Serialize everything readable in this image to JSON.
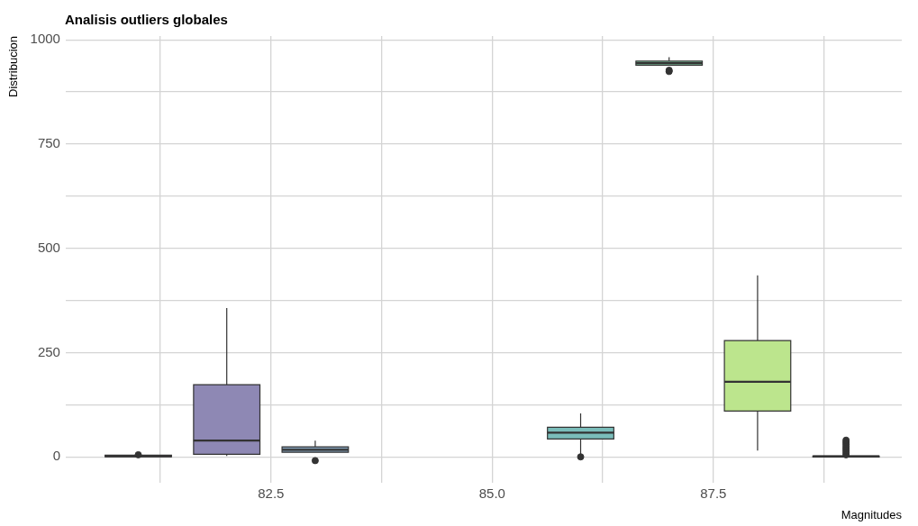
{
  "chart_data": {
    "type": "box",
    "title": "Analisis outliers globales",
    "xlabel": "Magnitudes",
    "ylabel": "Distribucion",
    "x": [
      81,
      82,
      83,
      86,
      87,
      88,
      89
    ],
    "colors": [
      "#8f6b99",
      "#8e88b4",
      "#839fb9",
      "#7abdba",
      "#86d1aa",
      "#bce58d",
      "#fdf08f"
    ],
    "boxes": [
      {
        "low": 0,
        "q1": 0,
        "median": 2,
        "q3": 4,
        "high": 6,
        "outliers": [
          5
        ]
      },
      {
        "low": 2,
        "q1": 6,
        "median": 39,
        "q3": 173,
        "high": 357
      },
      {
        "low": 11,
        "q1": 11,
        "median": 17,
        "q3": 24,
        "high": 39,
        "outliers": [
          -9
        ]
      },
      {
        "low": 5,
        "q1": 43,
        "median": 58,
        "q3": 71,
        "high": 104,
        "outliers": [
          0
        ]
      },
      {
        "low": 939,
        "q1": 939,
        "median": 944,
        "q3": 949,
        "high": 958,
        "outliers": [
          924,
          927
        ]
      },
      {
        "low": 15,
        "q1": 110,
        "median": 180,
        "q3": 279,
        "high": 435
      },
      {
        "low": 0,
        "q1": 0,
        "median": 1,
        "q3": 2,
        "high": 4,
        "outliers": [
          5,
          10,
          15,
          20,
          25,
          30,
          35,
          40
        ]
      }
    ],
    "xlim": [
      80.18,
      89.63
    ],
    "xticks": [
      {
        "value": 81.25,
        "label": null
      },
      82.5,
      {
        "value": 83.75,
        "label": null
      },
      {
        "value": 85,
        "label": "85.0"
      },
      {
        "value": 86.25,
        "label": null
      },
      87.5,
      {
        "value": 88.75,
        "label": null
      }
    ],
    "ylim": [
      -63,
      1009
    ],
    "yticks": [
      0,
      {
        "value": 125,
        "label": null
      },
      250,
      {
        "value": 375,
        "label": null
      },
      500,
      {
        "value": 625,
        "label": null
      },
      750,
      {
        "value": 875,
        "label": null
      },
      1000
    ],
    "grid": true,
    "legend": false
  }
}
